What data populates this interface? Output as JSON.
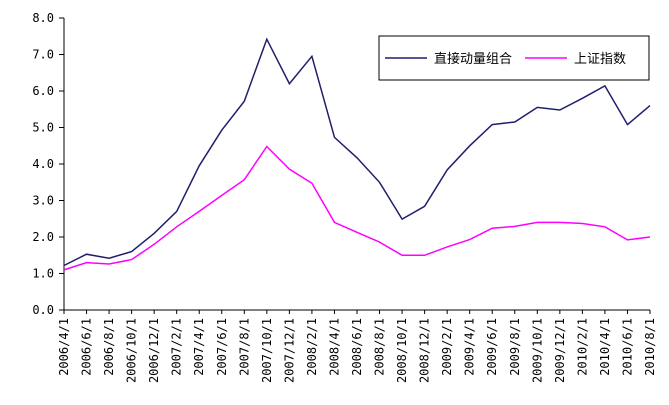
{
  "chart_data": {
    "type": "line",
    "x": [
      "2006/4/1",
      "2006/6/1",
      "2006/8/1",
      "2006/10/1",
      "2006/12/1",
      "2007/2/1",
      "2007/4/1",
      "2007/6/1",
      "2007/8/1",
      "2007/10/1",
      "2007/12/1",
      "2008/2/1",
      "2008/4/1",
      "2008/6/1",
      "2008/8/1",
      "2008/10/1",
      "2008/12/1",
      "2009/2/1",
      "2009/4/1",
      "2009/6/1",
      "2009/8/1",
      "2009/10/1",
      "2009/12/1",
      "2010/2/1",
      "2010/4/1",
      "2010/6/1",
      "2010/8/1"
    ],
    "series": [
      {
        "name": "直接动量组合",
        "color": "#1f1f6b",
        "values": [
          1.22,
          1.53,
          1.42,
          1.6,
          2.1,
          2.7,
          3.95,
          4.93,
          5.72,
          7.42,
          6.2,
          6.95,
          4.73,
          4.17,
          3.5,
          2.49,
          2.84,
          3.84,
          4.5,
          5.08,
          5.15,
          5.55,
          5.48,
          5.8,
          6.14,
          5.08,
          5.6
        ]
      },
      {
        "name": "上证指数",
        "color": "#ff00ff",
        "values": [
          1.1,
          1.3,
          1.26,
          1.38,
          1.8,
          2.28,
          2.7,
          3.14,
          3.57,
          4.48,
          3.86,
          3.47,
          2.4,
          2.13,
          1.86,
          1.5,
          1.5,
          1.73,
          1.93,
          2.24,
          2.29,
          2.4,
          2.4,
          2.37,
          2.28,
          1.92,
          2.0
        ]
      }
    ],
    "ylim": [
      0,
      8
    ],
    "yticks": [
      "0.0",
      "1.0",
      "2.0",
      "3.0",
      "4.0",
      "5.0",
      "6.0",
      "7.0",
      "8.0"
    ],
    "grid": false,
    "legend": "top-right"
  }
}
